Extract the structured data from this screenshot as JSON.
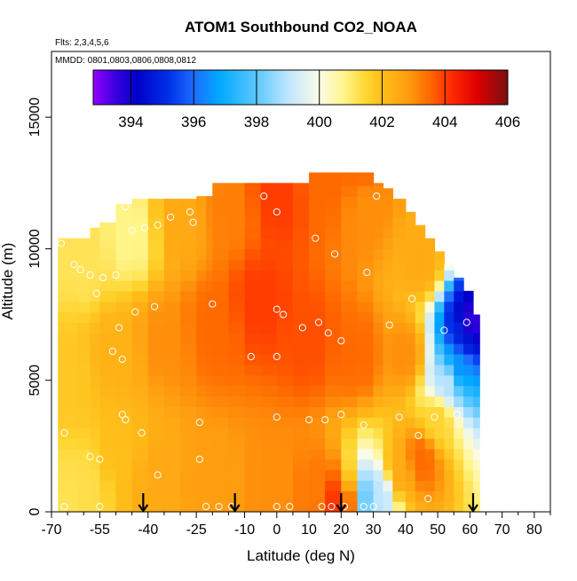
{
  "chart_data": {
    "type": "heatmap",
    "title": "ATOM1 Southbound CO2_NOAA",
    "annotations": {
      "flights": "Flts: 2,3,4,5,6",
      "dates": "MMDD: 0801,0803,0806,0808,0812"
    },
    "xlabel": "Latitude (deg N)",
    "ylabel": "Altitude (m)",
    "xlim": [
      -70,
      85
    ],
    "ylim": [
      0,
      17500
    ],
    "x_ticks": [
      -70,
      -55,
      -40,
      -25,
      -10,
      0,
      10,
      20,
      30,
      40,
      50,
      60,
      70,
      80
    ],
    "x_tick_labels": [
      "-70",
      "-55",
      "-40",
      "-25",
      "-10",
      "0",
      "10",
      "20",
      "30",
      "40",
      "50",
      "60",
      "70",
      "80"
    ],
    "x_minor_ticks": [
      -65,
      -60,
      -50,
      -45,
      -35,
      -30,
      -20,
      -15,
      -5,
      5,
      15,
      25,
      35,
      45,
      55,
      65,
      75,
      85
    ],
    "y_ticks": [
      0,
      5000,
      10000,
      15000
    ],
    "y_tick_labels": [
      "0",
      "5000",
      "10000",
      "15000"
    ],
    "colorbar": {
      "min": 392.8,
      "max": 406,
      "ticks": [
        394,
        396,
        398,
        400,
        402,
        404,
        406
      ],
      "tick_labels": [
        "394",
        "396",
        "398",
        "400",
        "402",
        "404",
        "406"
      ],
      "stops": [
        {
          "value": 392.8,
          "color": "#9400ff"
        },
        {
          "value": 393.5,
          "color": "#3b00e0"
        },
        {
          "value": 394.2,
          "color": "#0000c8"
        },
        {
          "value": 395.2,
          "color": "#0030e8"
        },
        {
          "value": 396.0,
          "color": "#1e6cff"
        },
        {
          "value": 396.8,
          "color": "#00a8ff"
        },
        {
          "value": 398.0,
          "color": "#5cc8ff"
        },
        {
          "value": 399.0,
          "color": "#bfe6ff"
        },
        {
          "value": 400.0,
          "color": "#fbfbe6"
        },
        {
          "value": 400.8,
          "color": "#fff58a"
        },
        {
          "value": 401.5,
          "color": "#ffd530"
        },
        {
          "value": 402.0,
          "color": "#ffbe1a"
        },
        {
          "value": 402.8,
          "color": "#ff9e10"
        },
        {
          "value": 403.5,
          "color": "#ff6a00"
        },
        {
          "value": 404.2,
          "color": "#ff2a00"
        },
        {
          "value": 405.0,
          "color": "#e00000"
        },
        {
          "value": 406.0,
          "color": "#7a1010"
        }
      ]
    },
    "field_cells": [
      {
        "lat": -68,
        "alt": 200,
        "value": 401.2
      },
      {
        "lat": -60,
        "alt": 900,
        "value": 401.3
      },
      {
        "lat": -48,
        "alt": 2200,
        "value": 402.0
      },
      {
        "lat": -38,
        "alt": 1500,
        "value": 402.5
      },
      {
        "lat": -20,
        "alt": 1200,
        "value": 402.8
      },
      {
        "lat": 0,
        "alt": 900,
        "value": 403.0
      },
      {
        "lat": 12,
        "alt": 700,
        "value": 403.3
      },
      {
        "lat": 20,
        "alt": 400,
        "value": 404.2
      },
      {
        "lat": 27,
        "alt": 500,
        "value": 398.2
      },
      {
        "lat": 32,
        "alt": 700,
        "value": 399.0
      },
      {
        "lat": 38,
        "alt": 1500,
        "value": 402.5
      },
      {
        "lat": 45,
        "alt": 2000,
        "value": 403.5
      },
      {
        "lat": 50,
        "alt": 3500,
        "value": 401.5
      },
      {
        "lat": 53,
        "alt": 5000,
        "value": 399.0
      },
      {
        "lat": 56,
        "alt": 5500,
        "value": 396.5
      },
      {
        "lat": 58,
        "alt": 6800,
        "value": 395.0
      },
      {
        "lat": 60,
        "alt": 7100,
        "value": 393.5
      },
      {
        "lat": -65,
        "alt": 5000,
        "value": 401.8
      },
      {
        "lat": -50,
        "alt": 6000,
        "value": 402.3
      },
      {
        "lat": -35,
        "alt": 6500,
        "value": 403.0
      },
      {
        "lat": -20,
        "alt": 7000,
        "value": 403.5
      },
      {
        "lat": -5,
        "alt": 8000,
        "value": 404.0
      },
      {
        "lat": 10,
        "alt": 6500,
        "value": 403.8
      },
      {
        "lat": 25,
        "alt": 6000,
        "value": 403.5
      },
      {
        "lat": 40,
        "alt": 6000,
        "value": 403.0
      },
      {
        "lat": -60,
        "alt": 9500,
        "value": 401.2
      },
      {
        "lat": -45,
        "alt": 10500,
        "value": 400.8
      },
      {
        "lat": -30,
        "alt": 11000,
        "value": 402.5
      },
      {
        "lat": -15,
        "alt": 11500,
        "value": 403.2
      },
      {
        "lat": 0,
        "alt": 12000,
        "value": 404.0
      },
      {
        "lat": 15,
        "alt": 12500,
        "value": 403.5
      },
      {
        "lat": 28,
        "alt": 11500,
        "value": 403.0
      },
      {
        "lat": 45,
        "alt": 9500,
        "value": 402.5
      },
      {
        "lat": 26,
        "alt": 13200,
        "value": 403.5
      }
    ],
    "profile_bands": [
      {
        "lat": -68,
        "top": 10400
      },
      {
        "lat": -62,
        "top": 10400
      },
      {
        "lat": -58,
        "top": 10800
      },
      {
        "lat": -55,
        "top": 11000
      },
      {
        "lat": -50,
        "top": 11700
      },
      {
        "lat": -45,
        "top": 11900
      },
      {
        "lat": -40,
        "top": 11900
      },
      {
        "lat": -35,
        "top": 11900
      },
      {
        "lat": -30,
        "top": 11900
      },
      {
        "lat": -25,
        "top": 12000
      },
      {
        "lat": -22,
        "top": 12000
      },
      {
        "lat": -20,
        "top": 12500
      },
      {
        "lat": -15,
        "top": 12500
      },
      {
        "lat": -10,
        "top": 12500
      },
      {
        "lat": -5,
        "top": 12500
      },
      {
        "lat": 0,
        "top": 12500
      },
      {
        "lat": 5,
        "top": 12500
      },
      {
        "lat": 10,
        "top": 12900
      },
      {
        "lat": 15,
        "top": 12900
      },
      {
        "lat": 20,
        "top": 12900
      },
      {
        "lat": 25,
        "top": 12900
      },
      {
        "lat": 30,
        "top": 12500
      },
      {
        "lat": 33,
        "top": 12300
      },
      {
        "lat": 36,
        "top": 11900
      },
      {
        "lat": 40,
        "top": 11400
      },
      {
        "lat": 43,
        "top": 10900
      },
      {
        "lat": 46,
        "top": 10400
      },
      {
        "lat": 49,
        "top": 9900
      },
      {
        "lat": 52,
        "top": 9400
      },
      {
        "lat": 55,
        "top": 8900
      },
      {
        "lat": 58,
        "top": 8400
      },
      {
        "lat": 61,
        "top": 7500
      }
    ],
    "sample_points": [
      [
        -67,
        10200
      ],
      [
        -66,
        200
      ],
      [
        -66,
        3000
      ],
      [
        -63,
        9400
      ],
      [
        -61,
        9200
      ],
      [
        -58,
        9000
      ],
      [
        -58,
        2100
      ],
      [
        -56,
        8300
      ],
      [
        -55,
        2000
      ],
      [
        -55,
        200
      ],
      [
        -54,
        8900
      ],
      [
        -51,
        6100
      ],
      [
        -50,
        9000
      ],
      [
        -49,
        7000
      ],
      [
        -48,
        3700
      ],
      [
        -48,
        5800
      ],
      [
        -47,
        3500
      ],
      [
        -47,
        11600
      ],
      [
        -45,
        10700
      ],
      [
        -44,
        7600
      ],
      [
        -42,
        3000
      ],
      [
        -41,
        10800
      ],
      [
        -38,
        7800
      ],
      [
        -37,
        1400
      ],
      [
        -37,
        10900
      ],
      [
        -33,
        11200
      ],
      [
        -27,
        11400
      ],
      [
        -26,
        11000
      ],
      [
        -24,
        3400
      ],
      [
        -24,
        2000
      ],
      [
        -22,
        200
      ],
      [
        -20,
        7900
      ],
      [
        -18,
        200
      ],
      [
        -14,
        200
      ],
      [
        -8,
        5900
      ],
      [
        -4,
        12000
      ],
      [
        0,
        11400
      ],
      [
        0,
        7700
      ],
      [
        0,
        5900
      ],
      [
        0,
        3600
      ],
      [
        0,
        200
      ],
      [
        2,
        7500
      ],
      [
        4,
        200
      ],
      [
        8,
        7000
      ],
      [
        10,
        3500
      ],
      [
        12,
        10400
      ],
      [
        13,
        7200
      ],
      [
        14,
        200
      ],
      [
        15,
        3500
      ],
      [
        16,
        6800
      ],
      [
        17,
        200
      ],
      [
        18,
        9800
      ],
      [
        20,
        3700
      ],
      [
        20,
        6500
      ],
      [
        21,
        200
      ],
      [
        27,
        3300
      ],
      [
        27,
        200
      ],
      [
        28,
        9100
      ],
      [
        30,
        200
      ],
      [
        31,
        12000
      ],
      [
        35,
        7100
      ],
      [
        38,
        3600
      ],
      [
        42,
        8100
      ],
      [
        44,
        2900
      ],
      [
        47,
        500
      ],
      [
        49,
        3600
      ],
      [
        52,
        6900
      ],
      [
        56,
        3700
      ],
      [
        59,
        7200
      ]
    ],
    "arrows_lat": [
      -41.5,
      -13,
      20,
      61
    ]
  }
}
